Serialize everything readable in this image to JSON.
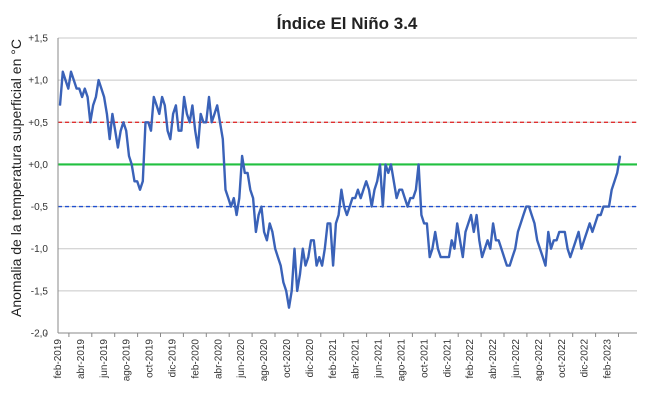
{
  "chart_data": {
    "type": "line",
    "title": "Índice El Niño 3.4",
    "ylabel": "Anomalia de la temperatura superficial en °C",
    "xlabel": "",
    "ylim": [
      -2.0,
      1.5
    ],
    "yticks": [
      1.5,
      1.0,
      0.5,
      0.0,
      -0.5,
      -1.0,
      -1.5,
      -2.0
    ],
    "ytick_labels": [
      "+1,5",
      "+1,0",
      "+0,5",
      "+0,0",
      "-0,5",
      "-1,0",
      "-1,5",
      "-2,0"
    ],
    "grid": "horizontal",
    "xtick_labels": [
      "feb-2019",
      "abr-2019",
      "jun-2019",
      "ago-2019",
      "oct-2019",
      "dic-2019",
      "feb-2020",
      "abr-2020",
      "jun-2020",
      "ago-2020",
      "oct-2020",
      "dic-2020",
      "feb-2021",
      "abr-2021",
      "jun-2021",
      "ago-2021",
      "oct-2021",
      "dic-2021",
      "feb-2022",
      "abr-2022",
      "jun-2022",
      "ago-2022",
      "oct-2022",
      "dic-2022",
      "feb-2023"
    ],
    "reference_lines": [
      {
        "y": 0.5,
        "color": "#e03030",
        "style": "dashed"
      },
      {
        "y": 0.0,
        "color": "#22c040",
        "style": "solid"
      },
      {
        "y": -0.5,
        "color": "#2050d0",
        "style": "dashed"
      }
    ],
    "series": [
      {
        "color": "#3a62b8",
        "values": [
          0.7,
          1.1,
          1.0,
          0.9,
          1.1,
          1.0,
          0.9,
          0.9,
          0.8,
          0.9,
          0.8,
          0.5,
          0.7,
          0.8,
          1.0,
          0.9,
          0.8,
          0.6,
          0.3,
          0.6,
          0.4,
          0.2,
          0.4,
          0.5,
          0.4,
          0.1,
          0.0,
          -0.2,
          -0.2,
          -0.3,
          -0.2,
          0.5,
          0.5,
          0.4,
          0.8,
          0.7,
          0.6,
          0.8,
          0.7,
          0.4,
          0.3,
          0.6,
          0.7,
          0.4,
          0.4,
          0.8,
          0.6,
          0.5,
          0.7,
          0.4,
          0.2,
          0.6,
          0.5,
          0.5,
          0.8,
          0.5,
          0.6,
          0.7,
          0.5,
          0.3,
          -0.3,
          -0.4,
          -0.5,
          -0.4,
          -0.6,
          -0.4,
          0.1,
          -0.1,
          -0.1,
          -0.3,
          -0.4,
          -0.8,
          -0.6,
          -0.5,
          -0.8,
          -0.9,
          -0.7,
          -0.8,
          -1.0,
          -1.1,
          -1.2,
          -1.4,
          -1.5,
          -1.7,
          -1.5,
          -1.0,
          -1.5,
          -1.3,
          -1.0,
          -1.2,
          -1.1,
          -0.9,
          -0.9,
          -1.2,
          -1.1,
          -1.2,
          -1.0,
          -0.7,
          -0.7,
          -1.2,
          -0.7,
          -0.6,
          -0.3,
          -0.5,
          -0.6,
          -0.5,
          -0.4,
          -0.4,
          -0.3,
          -0.4,
          -0.3,
          -0.2,
          -0.3,
          -0.5,
          -0.3,
          -0.2,
          0.0,
          -0.5,
          0.0,
          -0.1,
          0.0,
          -0.2,
          -0.4,
          -0.3,
          -0.3,
          -0.4,
          -0.5,
          -0.4,
          -0.4,
          -0.3,
          0.0,
          -0.6,
          -0.7,
          -0.7,
          -1.1,
          -1.0,
          -0.8,
          -1.0,
          -1.1,
          -1.1,
          -1.1,
          -1.1,
          -0.9,
          -1.0,
          -0.7,
          -0.9,
          -1.1,
          -0.8,
          -0.7,
          -0.6,
          -0.8,
          -0.6,
          -0.9,
          -1.1,
          -1.0,
          -0.9,
          -1.0,
          -0.7,
          -0.9,
          -0.9,
          -1.0,
          -1.1,
          -1.2,
          -1.2,
          -1.1,
          -1.0,
          -0.8,
          -0.7,
          -0.6,
          -0.5,
          -0.5,
          -0.6,
          -0.7,
          -0.9,
          -1.0,
          -1.1,
          -1.2,
          -0.8,
          -1.0,
          -0.9,
          -0.9,
          -0.8,
          -0.8,
          -0.8,
          -1.0,
          -1.1,
          -1.0,
          -0.9,
          -0.8,
          -1.0,
          -0.9,
          -0.8,
          -0.7,
          -0.8,
          -0.7,
          -0.6,
          -0.6,
          -0.5,
          -0.5,
          -0.5,
          -0.3,
          -0.2,
          -0.1,
          0.1
        ]
      }
    ]
  }
}
